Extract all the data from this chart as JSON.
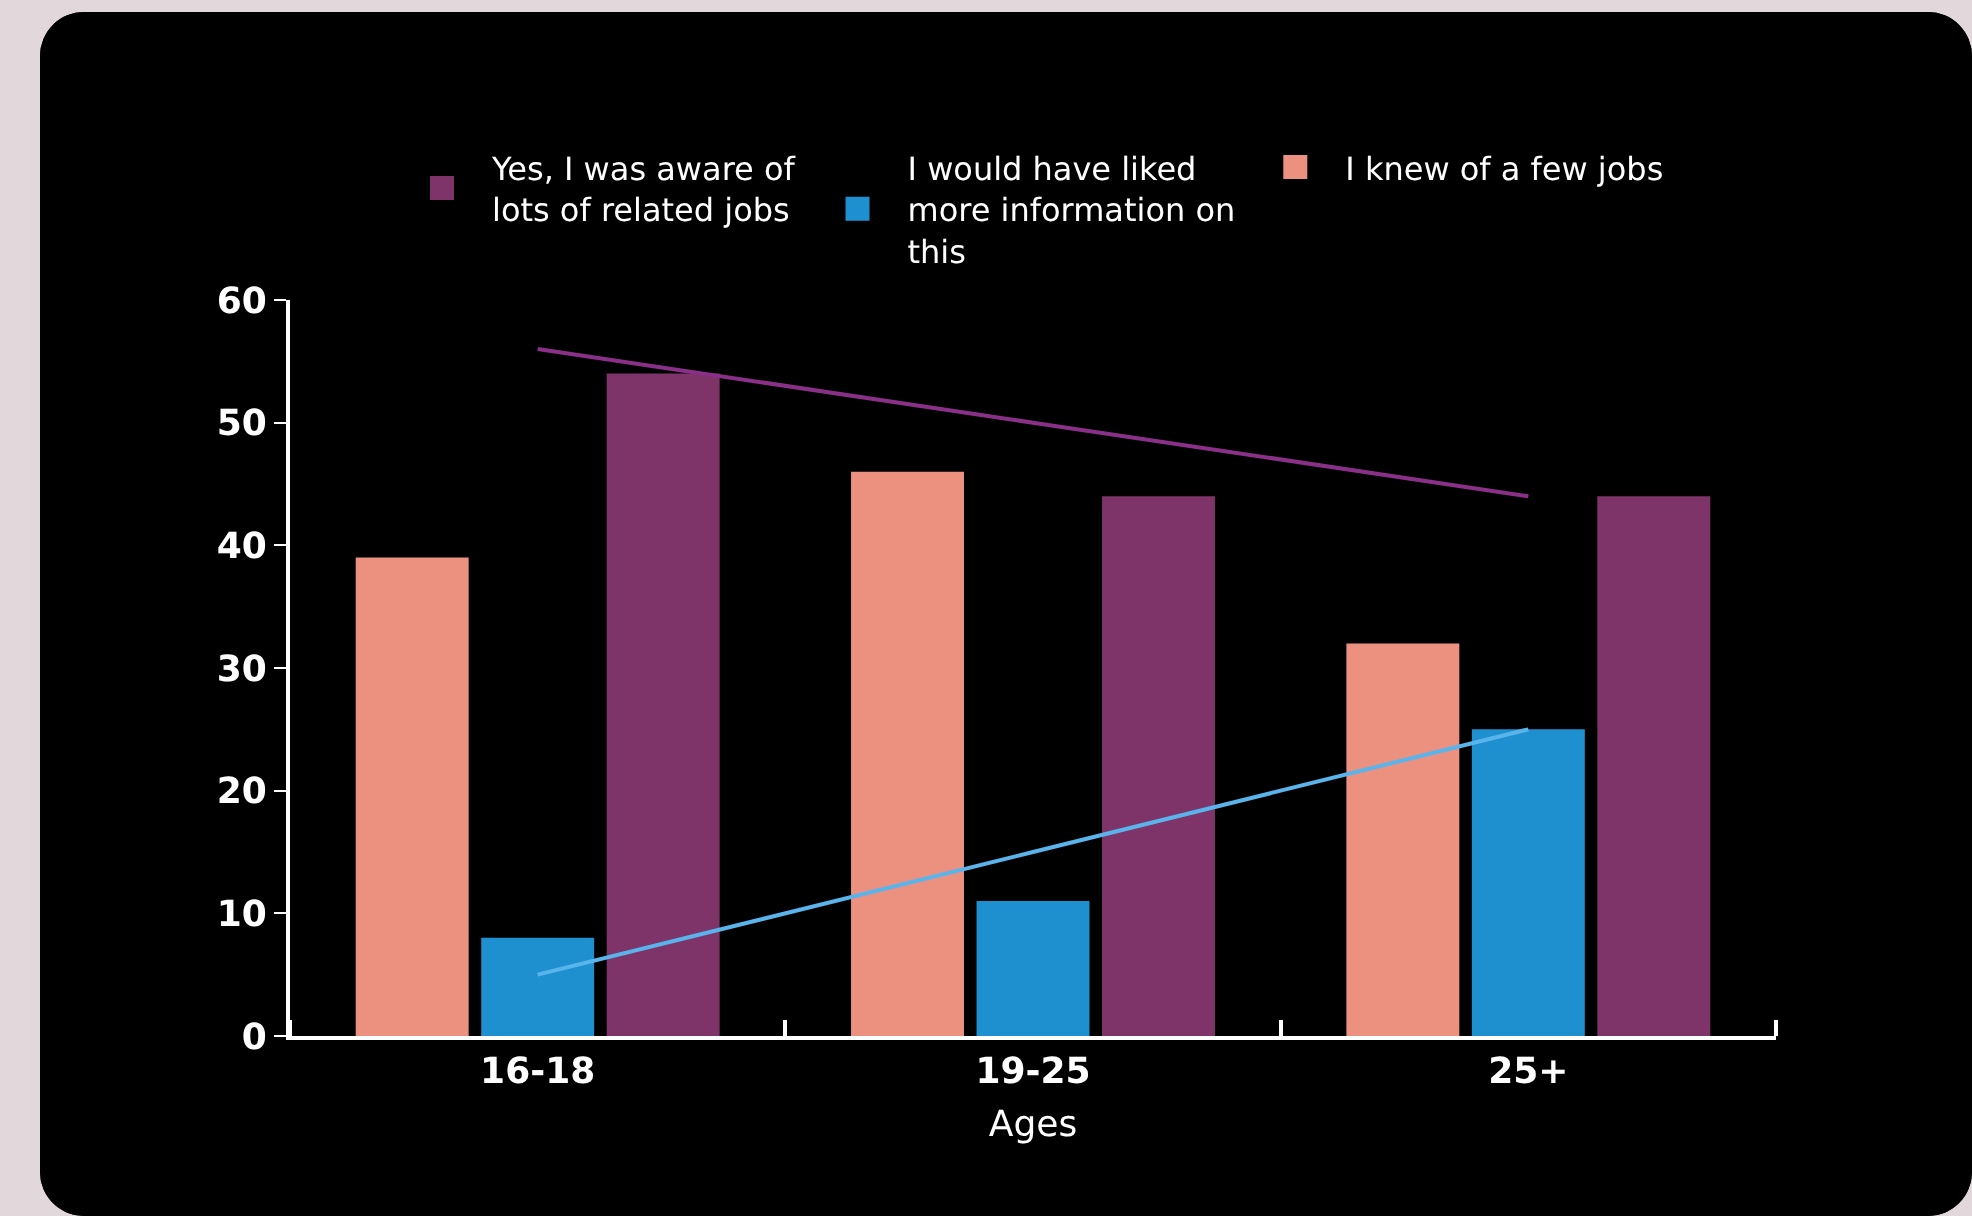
{
  "chart_data": {
    "type": "bar",
    "xlabel": "Ages",
    "categories": [
      "16-18",
      "19-25",
      "25+"
    ],
    "series": [
      {
        "name": "I knew of a few jobs",
        "color": "#ec9080",
        "values": [
          39,
          46,
          32
        ]
      },
      {
        "name": "I would have liked more information on this",
        "color": "#1e90d0",
        "values": [
          8,
          11,
          25
        ]
      },
      {
        "name": "Yes, I was aware of lots of related jobs",
        "color": "#7e3468",
        "values": [
          54,
          44,
          44
        ]
      },
      {
        "type": "line",
        "color": "#8a3088",
        "values": [
          56,
          50,
          44
        ]
      },
      {
        "type": "line",
        "color": "#5ab4ec",
        "values": [
          5,
          15,
          25
        ]
      }
    ],
    "ylim": [
      0,
      60
    ],
    "yticks": [
      0,
      10,
      20,
      30,
      40,
      50,
      60
    ],
    "grid": false,
    "legend": "top"
  }
}
